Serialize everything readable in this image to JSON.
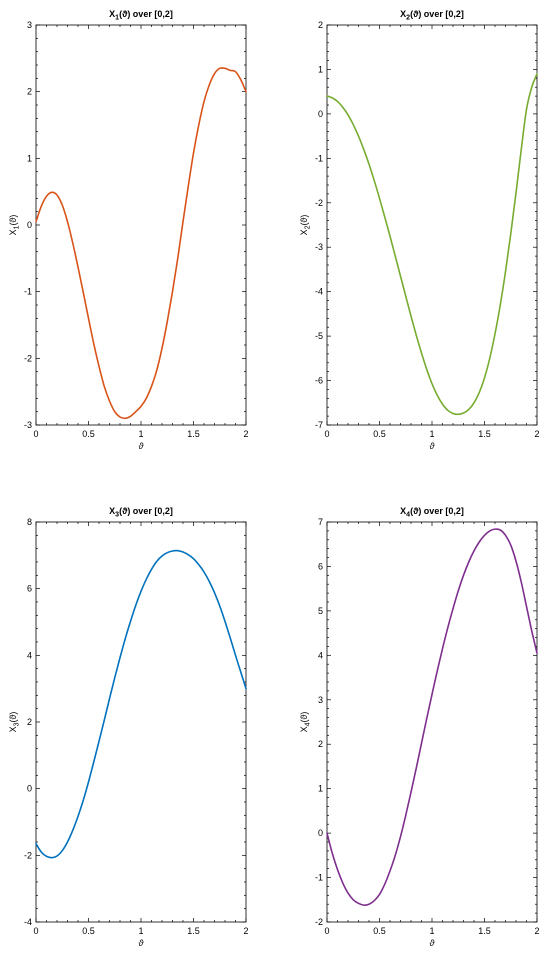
{
  "chart_data": [
    {
      "type": "line",
      "title_main": "X",
      "title_sub": "1",
      "title_tail": "(ϑ)  over  [0,2]",
      "ylabel_main": "X",
      "ylabel_sub": "1",
      "ylabel_tail": "(ϑ)",
      "xlabel": "ϑ",
      "xlim": [
        0,
        2
      ],
      "ylim": [
        -3,
        3
      ],
      "xticks": [
        "0",
        "0.5",
        "1",
        "1.5",
        "2"
      ],
      "yticks": [
        "-3",
        "-2",
        "-1",
        "0",
        "1",
        "2",
        "3"
      ],
      "color": "#d95319",
      "series": [
        {
          "x": [
            0,
            0.05,
            0.1,
            0.15,
            0.2,
            0.25,
            0.3,
            0.35,
            0.4,
            0.45,
            0.5,
            0.55,
            0.6,
            0.65,
            0.7,
            0.75,
            0.8,
            0.85,
            0.9,
            0.95,
            1.0,
            1.05,
            1.1,
            1.15,
            1.2,
            1.25,
            1.3,
            1.35,
            1.4,
            1.45,
            1.5,
            1.55,
            1.6,
            1.65,
            1.7,
            1.75,
            1.8,
            1.85,
            1.9,
            1.95,
            2.0
          ],
          "y": [
            0.05,
            0.28,
            0.43,
            0.49,
            0.45,
            0.3,
            0.05,
            -0.27,
            -0.63,
            -1.01,
            -1.4,
            -1.78,
            -2.12,
            -2.42,
            -2.64,
            -2.8,
            -2.88,
            -2.9,
            -2.87,
            -2.8,
            -2.72,
            -2.6,
            -2.42,
            -2.18,
            -1.85,
            -1.45,
            -1.0,
            -0.5,
            0.05,
            0.58,
            1.08,
            1.5,
            1.85,
            2.1,
            2.27,
            2.35,
            2.35,
            2.32,
            2.3,
            2.18,
            2.0
          ]
        }
      ]
    },
    {
      "type": "line",
      "title_main": "X",
      "title_sub": "2",
      "title_tail": "(ϑ)  over  [0,2]",
      "ylabel_main": "X",
      "ylabel_sub": "2",
      "ylabel_tail": "(ϑ)",
      "xlabel": "ϑ",
      "xlim": [
        0,
        2
      ],
      "ylim": [
        -7,
        2
      ],
      "xticks": [
        "0",
        "0.5",
        "1",
        "1.5",
        "2"
      ],
      "yticks": [
        "-7",
        "-6",
        "-5",
        "-4",
        "-3",
        "-2",
        "-1",
        "0",
        "1",
        "2"
      ],
      "color": "#77ac30",
      "series": [
        {
          "x": [
            0,
            0.05,
            0.1,
            0.15,
            0.2,
            0.25,
            0.3,
            0.35,
            0.4,
            0.45,
            0.5,
            0.55,
            0.6,
            0.65,
            0.7,
            0.75,
            0.8,
            0.85,
            0.9,
            0.95,
            1.0,
            1.05,
            1.1,
            1.15,
            1.2,
            1.25,
            1.3,
            1.35,
            1.4,
            1.45,
            1.5,
            1.55,
            1.6,
            1.65,
            1.7,
            1.75,
            1.8,
            1.85,
            1.9,
            1.95,
            2.0
          ],
          "y": [
            0.4,
            0.36,
            0.28,
            0.15,
            -0.02,
            -0.24,
            -0.5,
            -0.8,
            -1.13,
            -1.5,
            -1.9,
            -2.32,
            -2.75,
            -3.2,
            -3.65,
            -4.1,
            -4.55,
            -4.98,
            -5.38,
            -5.75,
            -6.07,
            -6.33,
            -6.53,
            -6.67,
            -6.74,
            -6.76,
            -6.73,
            -6.65,
            -6.5,
            -6.27,
            -5.94,
            -5.5,
            -4.95,
            -4.3,
            -3.55,
            -2.7,
            -1.78,
            -0.8,
            0.1,
            0.6,
            0.9
          ]
        }
      ]
    },
    {
      "type": "line",
      "title_main": "X",
      "title_sub": "3",
      "title_tail": "(ϑ)  over  [0,2]",
      "ylabel_main": "X",
      "ylabel_sub": "3",
      "ylabel_tail": "(ϑ)",
      "xlabel": "ϑ",
      "xlim": [
        0,
        2
      ],
      "ylim": [
        -4,
        8
      ],
      "xticks": [
        "0",
        "0.5",
        "1",
        "1.5",
        "2"
      ],
      "yticks": [
        "-4",
        "-2",
        "0",
        "2",
        "4",
        "6",
        "8"
      ],
      "color": "#0072bd",
      "series": [
        {
          "x": [
            0,
            0.05,
            0.1,
            0.15,
            0.2,
            0.25,
            0.3,
            0.35,
            0.4,
            0.45,
            0.5,
            0.55,
            0.6,
            0.65,
            0.7,
            0.75,
            0.8,
            0.85,
            0.9,
            0.95,
            1.0,
            1.05,
            1.1,
            1.15,
            1.2,
            1.25,
            1.3,
            1.35,
            1.4,
            1.45,
            1.5,
            1.55,
            1.6,
            1.65,
            1.7,
            1.75,
            1.8,
            1.85,
            1.9,
            1.95,
            2.0
          ],
          "y": [
            -1.65,
            -1.9,
            -2.03,
            -2.07,
            -2.02,
            -1.86,
            -1.6,
            -1.25,
            -0.83,
            -0.35,
            0.2,
            0.8,
            1.42,
            2.05,
            2.7,
            3.33,
            3.93,
            4.5,
            5.02,
            5.5,
            5.92,
            6.28,
            6.58,
            6.82,
            6.98,
            7.08,
            7.13,
            7.14,
            7.1,
            7.02,
            6.9,
            6.72,
            6.5,
            6.22,
            5.88,
            5.48,
            5.02,
            4.52,
            4.0,
            3.5,
            3.0
          ]
        }
      ]
    },
    {
      "type": "line",
      "title_main": "X",
      "title_sub": "4",
      "title_tail": "(ϑ)  over  [0,2]",
      "ylabel_main": "X",
      "ylabel_sub": "4",
      "ylabel_tail": "(ϑ)",
      "xlabel": "ϑ",
      "xlim": [
        0,
        2
      ],
      "ylim": [
        -2,
        7
      ],
      "xticks": [
        "0",
        "0.5",
        "1",
        "1.5",
        "2"
      ],
      "yticks": [
        "-2",
        "-1",
        "0",
        "1",
        "2",
        "3",
        "4",
        "5",
        "6",
        "7"
      ],
      "color": "#7e2f8e",
      "series": [
        {
          "x": [
            0,
            0.05,
            0.1,
            0.15,
            0.2,
            0.25,
            0.3,
            0.35,
            0.4,
            0.45,
            0.5,
            0.55,
            0.6,
            0.65,
            0.7,
            0.75,
            0.8,
            0.85,
            0.9,
            0.95,
            1.0,
            1.05,
            1.1,
            1.15,
            1.2,
            1.25,
            1.3,
            1.35,
            1.4,
            1.45,
            1.5,
            1.55,
            1.6,
            1.65,
            1.7,
            1.75,
            1.8,
            1.85,
            1.9,
            1.95,
            2.0
          ],
          "y": [
            0.0,
            -0.45,
            -0.82,
            -1.12,
            -1.35,
            -1.5,
            -1.58,
            -1.62,
            -1.6,
            -1.52,
            -1.38,
            -1.15,
            -0.85,
            -0.5,
            -0.08,
            0.4,
            0.92,
            1.46,
            2.02,
            2.58,
            3.12,
            3.65,
            4.15,
            4.62,
            5.05,
            5.45,
            5.8,
            6.1,
            6.35,
            6.55,
            6.7,
            6.8,
            6.84,
            6.82,
            6.7,
            6.48,
            6.12,
            5.65,
            5.1,
            4.55,
            4.05
          ]
        }
      ]
    }
  ]
}
